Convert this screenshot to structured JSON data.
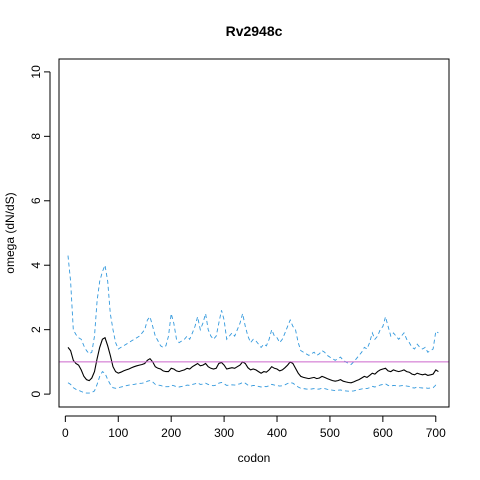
{
  "chart_data": {
    "type": "line",
    "title": "Rv2948c",
    "xlabel": "codon",
    "ylabel": "omega (dN/dS)",
    "xlim": [
      -12,
      725
    ],
    "ylim": [
      -0.4,
      10.4
    ],
    "xticks": [
      0,
      100,
      200,
      300,
      400,
      500,
      600,
      700
    ],
    "yticks": [
      0,
      2,
      4,
      6,
      8,
      10
    ],
    "grid": false,
    "legend": "none",
    "reference_line": {
      "y": 1,
      "color": "#cc66cc"
    },
    "series": [
      {
        "style": "solid",
        "color": "#000000",
        "x": [
          5,
          10,
          15,
          20,
          25,
          30,
          35,
          40,
          45,
          50,
          55,
          60,
          65,
          70,
          75,
          80,
          85,
          90,
          95,
          100,
          105,
          110,
          115,
          120,
          125,
          130,
          135,
          140,
          145,
          150,
          155,
          160,
          165,
          170,
          175,
          180,
          185,
          190,
          195,
          200,
          205,
          210,
          215,
          220,
          225,
          230,
          235,
          240,
          245,
          250,
          255,
          260,
          265,
          270,
          275,
          280,
          285,
          290,
          295,
          300,
          305,
          310,
          315,
          320,
          325,
          330,
          335,
          340,
          345,
          350,
          355,
          360,
          365,
          370,
          375,
          380,
          385,
          390,
          395,
          400,
          405,
          410,
          415,
          420,
          425,
          430,
          435,
          440,
          445,
          450,
          455,
          460,
          465,
          470,
          475,
          480,
          485,
          490,
          495,
          500,
          505,
          510,
          515,
          520,
          525,
          530,
          535,
          540,
          545,
          550,
          555,
          560,
          565,
          570,
          575,
          580,
          585,
          590,
          595,
          600,
          605,
          610,
          615,
          620,
          625,
          630,
          635,
          640,
          645,
          650,
          655,
          660,
          665,
          670,
          675,
          680,
          685,
          690,
          695,
          700,
          705
        ],
        "y": [
          1.45,
          1.35,
          1.05,
          0.95,
          0.9,
          0.75,
          0.55,
          0.45,
          0.42,
          0.5,
          0.7,
          1.1,
          1.45,
          1.7,
          1.75,
          1.5,
          1.2,
          0.85,
          0.7,
          0.65,
          0.68,
          0.72,
          0.75,
          0.78,
          0.82,
          0.85,
          0.88,
          0.9,
          0.92,
          0.95,
          1.05,
          1.1,
          1.0,
          0.85,
          0.8,
          0.78,
          0.72,
          0.7,
          0.7,
          0.8,
          0.78,
          0.72,
          0.7,
          0.73,
          0.75,
          0.8,
          0.78,
          0.85,
          0.9,
          0.95,
          0.88,
          0.9,
          0.95,
          0.85,
          0.8,
          0.78,
          0.8,
          0.95,
          0.98,
          0.9,
          0.78,
          0.8,
          0.82,
          0.8,
          0.85,
          0.9,
          1.0,
          0.95,
          0.82,
          0.75,
          0.78,
          0.75,
          0.7,
          0.65,
          0.7,
          0.68,
          0.75,
          0.85,
          0.8,
          0.78,
          0.72,
          0.75,
          0.82,
          0.9,
          1.0,
          0.95,
          0.8,
          0.65,
          0.55,
          0.52,
          0.5,
          0.48,
          0.5,
          0.52,
          0.48,
          0.5,
          0.55,
          0.52,
          0.48,
          0.45,
          0.42,
          0.4,
          0.42,
          0.45,
          0.4,
          0.38,
          0.36,
          0.35,
          0.38,
          0.42,
          0.45,
          0.5,
          0.55,
          0.52,
          0.58,
          0.65,
          0.62,
          0.7,
          0.75,
          0.78,
          0.8,
          0.72,
          0.7,
          0.75,
          0.72,
          0.7,
          0.72,
          0.75,
          0.7,
          0.68,
          0.62,
          0.6,
          0.65,
          0.62,
          0.6,
          0.62,
          0.58,
          0.6,
          0.62,
          0.75,
          0.7
        ]
      },
      {
        "style": "dashed",
        "color": "#3399dd",
        "x": [
          5,
          10,
          15,
          20,
          25,
          30,
          35,
          40,
          45,
          50,
          55,
          60,
          65,
          70,
          75,
          80,
          85,
          90,
          95,
          100,
          105,
          110,
          115,
          120,
          125,
          130,
          135,
          140,
          145,
          150,
          155,
          160,
          165,
          170,
          175,
          180,
          185,
          190,
          195,
          200,
          205,
          210,
          215,
          220,
          225,
          230,
          235,
          240,
          245,
          250,
          255,
          260,
          265,
          270,
          275,
          280,
          285,
          290,
          295,
          300,
          305,
          310,
          315,
          320,
          325,
          330,
          335,
          340,
          345,
          350,
          355,
          360,
          365,
          370,
          375,
          380,
          385,
          390,
          395,
          400,
          405,
          410,
          415,
          420,
          425,
          430,
          435,
          440,
          445,
          450,
          455,
          460,
          465,
          470,
          475,
          480,
          485,
          490,
          495,
          500,
          505,
          510,
          515,
          520,
          525,
          530,
          535,
          540,
          545,
          550,
          555,
          560,
          565,
          570,
          575,
          580,
          585,
          590,
          595,
          600,
          605,
          610,
          615,
          620,
          625,
          630,
          635,
          640,
          645,
          650,
          655,
          660,
          665,
          670,
          675,
          680,
          685,
          690,
          695,
          700,
          705
        ],
        "y": [
          4.3,
          3.5,
          2.0,
          1.85,
          1.75,
          1.7,
          1.5,
          1.35,
          1.25,
          1.3,
          1.8,
          2.9,
          3.5,
          3.8,
          4.0,
          3.5,
          2.5,
          2.0,
          1.6,
          1.4,
          1.45,
          1.5,
          1.55,
          1.6,
          1.65,
          1.7,
          1.75,
          1.8,
          1.9,
          2.0,
          2.3,
          2.4,
          2.1,
          1.8,
          1.65,
          1.5,
          1.45,
          1.5,
          1.8,
          2.5,
          2.2,
          1.7,
          1.6,
          1.65,
          1.7,
          1.8,
          1.7,
          1.9,
          2.1,
          2.4,
          2.0,
          2.2,
          2.5,
          2.0,
          1.8,
          1.7,
          1.8,
          2.2,
          2.6,
          2.3,
          1.7,
          1.8,
          1.9,
          1.8,
          2.0,
          2.2,
          2.5,
          2.1,
          1.8,
          1.6,
          1.7,
          1.65,
          1.55,
          1.45,
          1.55,
          1.5,
          1.7,
          2.0,
          1.8,
          1.75,
          1.6,
          1.7,
          1.9,
          2.1,
          2.3,
          2.1,
          2.0,
          1.6,
          1.35,
          1.3,
          1.25,
          1.2,
          1.25,
          1.3,
          1.2,
          1.25,
          1.35,
          1.3,
          1.2,
          1.15,
          1.1,
          1.05,
          1.1,
          1.15,
          1.05,
          1.0,
          0.95,
          0.92,
          1.0,
          1.1,
          1.2,
          1.3,
          1.45,
          1.4,
          1.6,
          1.9,
          1.7,
          1.8,
          2.0,
          2.1,
          2.4,
          2.1,
          1.8,
          1.9,
          1.8,
          1.7,
          1.8,
          1.9,
          1.7,
          1.6,
          1.45,
          1.4,
          1.55,
          1.45,
          1.4,
          1.45,
          1.3,
          1.35,
          1.4,
          1.95,
          1.9
        ]
      },
      {
        "style": "dashed",
        "color": "#3399dd",
        "x": [
          5,
          10,
          15,
          20,
          25,
          30,
          35,
          40,
          45,
          50,
          55,
          60,
          65,
          70,
          75,
          80,
          85,
          90,
          95,
          100,
          105,
          110,
          115,
          120,
          125,
          130,
          135,
          140,
          145,
          150,
          155,
          160,
          165,
          170,
          175,
          180,
          185,
          190,
          195,
          200,
          205,
          210,
          215,
          220,
          225,
          230,
          235,
          240,
          245,
          250,
          255,
          260,
          265,
          270,
          275,
          280,
          285,
          290,
          295,
          300,
          305,
          310,
          315,
          320,
          325,
          330,
          335,
          340,
          345,
          350,
          355,
          360,
          365,
          370,
          375,
          380,
          385,
          390,
          395,
          400,
          405,
          410,
          415,
          420,
          425,
          430,
          435,
          440,
          445,
          450,
          455,
          460,
          465,
          470,
          475,
          480,
          485,
          490,
          495,
          500,
          505,
          510,
          515,
          520,
          525,
          530,
          535,
          540,
          545,
          550,
          555,
          560,
          565,
          570,
          575,
          580,
          585,
          590,
          595,
          600,
          605,
          610,
          615,
          620,
          625,
          630,
          635,
          640,
          645,
          650,
          655,
          660,
          665,
          670,
          675,
          680,
          685,
          690,
          695,
          700,
          705
        ],
        "y": [
          0.35,
          0.3,
          0.2,
          0.15,
          0.12,
          0.08,
          0.05,
          0.03,
          0.03,
          0.05,
          0.1,
          0.3,
          0.55,
          0.7,
          0.65,
          0.45,
          0.3,
          0.2,
          0.18,
          0.2,
          0.22,
          0.24,
          0.26,
          0.28,
          0.3,
          0.3,
          0.32,
          0.33,
          0.34,
          0.35,
          0.4,
          0.42,
          0.38,
          0.3,
          0.28,
          0.27,
          0.24,
          0.23,
          0.23,
          0.28,
          0.26,
          0.23,
          0.22,
          0.24,
          0.25,
          0.28,
          0.27,
          0.3,
          0.32,
          0.35,
          0.3,
          0.31,
          0.34,
          0.3,
          0.27,
          0.26,
          0.28,
          0.34,
          0.36,
          0.32,
          0.27,
          0.28,
          0.29,
          0.28,
          0.3,
          0.32,
          0.36,
          0.34,
          0.28,
          0.25,
          0.27,
          0.26,
          0.24,
          0.22,
          0.24,
          0.23,
          0.26,
          0.3,
          0.28,
          0.27,
          0.25,
          0.26,
          0.29,
          0.33,
          0.36,
          0.34,
          0.28,
          0.22,
          0.18,
          0.17,
          0.16,
          0.15,
          0.16,
          0.17,
          0.15,
          0.16,
          0.18,
          0.17,
          0.15,
          0.14,
          0.12,
          0.11,
          0.12,
          0.13,
          0.11,
          0.1,
          0.09,
          0.09,
          0.1,
          0.12,
          0.14,
          0.16,
          0.18,
          0.17,
          0.2,
          0.24,
          0.22,
          0.25,
          0.28,
          0.3,
          0.32,
          0.27,
          0.25,
          0.27,
          0.26,
          0.25,
          0.26,
          0.27,
          0.25,
          0.24,
          0.2,
          0.19,
          0.22,
          0.2,
          0.19,
          0.2,
          0.18,
          0.19,
          0.2,
          0.28,
          0.25
        ]
      }
    ]
  }
}
